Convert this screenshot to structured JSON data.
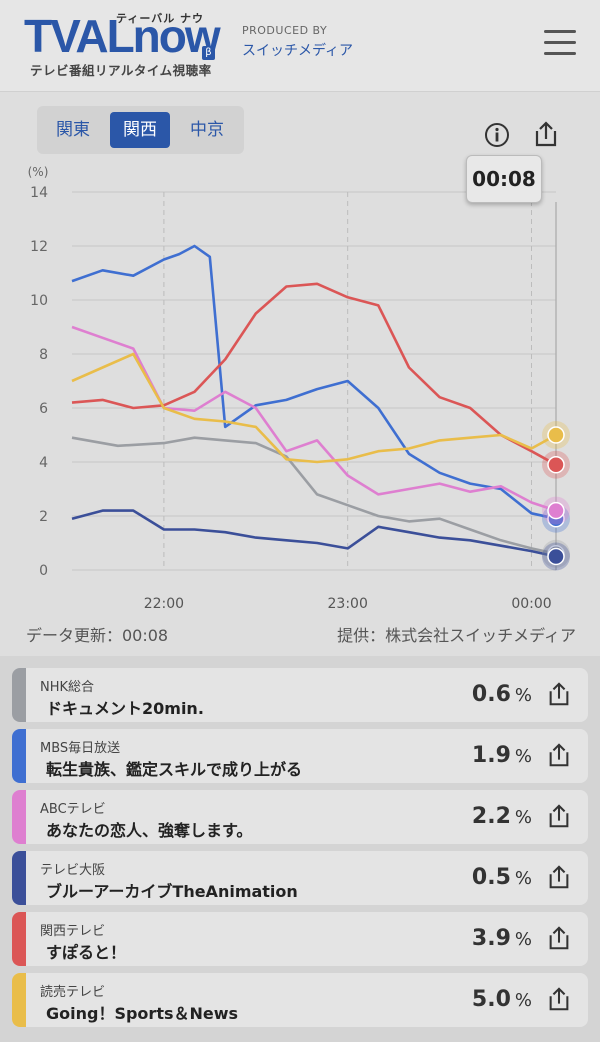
{
  "header": {
    "logo_text": "TVALnow",
    "logo_ruby": "ティーバル ナウ",
    "logo_beta": "β",
    "logo_sub": "テレビ番組リアルタイム視聴率",
    "produced_by": "PRODUCED BY",
    "producer": "スイッチメディア"
  },
  "regions": [
    {
      "label": "関東",
      "active": false
    },
    {
      "label": "関西",
      "active": true
    },
    {
      "label": "中京",
      "active": false
    }
  ],
  "current_time": "00:08",
  "footer": {
    "updated": "データ更新：00:08",
    "provider": "提供：株式会社スイッチメディア"
  },
  "chart_data": {
    "type": "line",
    "ylabel": "(%)",
    "ylim": [
      0,
      14
    ],
    "yticks": [
      0,
      2,
      4,
      6,
      8,
      10,
      12,
      14
    ],
    "x_tick_labels": [
      "22:00",
      "23:00",
      "00:00"
    ],
    "x_time_range": [
      "21:30",
      "00:08"
    ],
    "series": [
      {
        "name": "NHK総合",
        "color": "#9b9ea3",
        "x": [
          "21:30",
          "21:45",
          "22:00",
          "22:10",
          "22:20",
          "22:30",
          "22:40",
          "22:50",
          "23:00",
          "23:10",
          "23:20",
          "23:30",
          "23:40",
          "23:50",
          "00:00",
          "00:08"
        ],
        "values": [
          4.9,
          4.6,
          4.7,
          4.9,
          4.8,
          4.7,
          4.2,
          2.8,
          2.4,
          2.0,
          1.8,
          1.9,
          1.5,
          1.1,
          0.8,
          0.6
        ]
      },
      {
        "name": "MBS毎日放送",
        "color": "#3f6fd1",
        "x": [
          "21:30",
          "21:40",
          "21:50",
          "22:00",
          "22:05",
          "22:10",
          "22:15",
          "22:20",
          "22:30",
          "22:40",
          "22:50",
          "23:00",
          "23:10",
          "23:20",
          "23:30",
          "23:40",
          "23:50",
          "00:00",
          "00:08"
        ],
        "values": [
          10.7,
          11.1,
          10.9,
          11.5,
          11.7,
          12.0,
          11.6,
          5.3,
          6.1,
          6.3,
          6.7,
          7.0,
          6.0,
          4.3,
          3.6,
          3.2,
          3.0,
          2.1,
          1.9
        ]
      },
      {
        "name": "ABCテレビ",
        "color": "#de7fd0",
        "x": [
          "21:30",
          "21:40",
          "21:50",
          "22:00",
          "22:10",
          "22:20",
          "22:30",
          "22:40",
          "22:50",
          "23:00",
          "23:10",
          "23:20",
          "23:30",
          "23:40",
          "23:50",
          "00:00",
          "00:08"
        ],
        "values": [
          9.0,
          8.6,
          8.2,
          6.0,
          5.9,
          6.6,
          6.0,
          4.4,
          4.8,
          3.5,
          2.8,
          3.0,
          3.2,
          2.9,
          3.1,
          2.5,
          2.2
        ]
      },
      {
        "name": "テレビ大阪",
        "color": "#3b4f99",
        "x": [
          "21:30",
          "21:40",
          "21:50",
          "22:00",
          "22:10",
          "22:20",
          "22:30",
          "22:40",
          "22:50",
          "23:00",
          "23:10",
          "23:20",
          "23:30",
          "23:40",
          "23:50",
          "00:00",
          "00:08"
        ],
        "values": [
          1.9,
          2.2,
          2.2,
          1.5,
          1.5,
          1.4,
          1.2,
          1.1,
          1.0,
          0.8,
          1.6,
          1.4,
          1.2,
          1.1,
          0.9,
          0.7,
          0.5
        ]
      },
      {
        "name": "関西テレビ",
        "color": "#db5656",
        "x": [
          "21:30",
          "21:40",
          "21:50",
          "22:00",
          "22:10",
          "22:20",
          "22:30",
          "22:40",
          "22:50",
          "23:00",
          "23:10",
          "23:20",
          "23:30",
          "23:40",
          "23:50",
          "00:00",
          "00:08"
        ],
        "values": [
          6.2,
          6.3,
          6.0,
          6.1,
          6.6,
          7.8,
          9.5,
          10.5,
          10.6,
          10.1,
          9.8,
          7.5,
          6.4,
          6.0,
          5.0,
          4.4,
          3.9
        ]
      },
      {
        "name": "読売テレビ",
        "color": "#e9bd4a",
        "x": [
          "21:30",
          "21:40",
          "21:50",
          "22:00",
          "22:10",
          "22:20",
          "22:30",
          "22:40",
          "22:50",
          "23:00",
          "23:10",
          "23:20",
          "23:30",
          "23:40",
          "23:50",
          "00:00",
          "00:08"
        ],
        "values": [
          7.0,
          7.5,
          8.0,
          6.0,
          5.6,
          5.5,
          5.3,
          4.1,
          4.0,
          4.1,
          4.4,
          4.5,
          4.8,
          4.9,
          5.0,
          4.5,
          5.0
        ]
      }
    ]
  },
  "programs": [
    {
      "station": "NHK総合",
      "program": "ドキュメント20min.",
      "rating": "0.6",
      "unit": "%",
      "color": "#9b9ea3"
    },
    {
      "station": "MBS毎日放送",
      "program": "転生貴族、鑑定スキルで成り上がる",
      "rating": "1.9",
      "unit": "%",
      "color": "#3f6fd1"
    },
    {
      "station": "ABCテレビ",
      "program": "あなたの恋人、強奪します。",
      "rating": "2.2",
      "unit": "%",
      "color": "#de7fd0"
    },
    {
      "station": "テレビ大阪",
      "program": "ブルーアーカイブTheAnimation",
      "rating": "0.5",
      "unit": "%",
      "color": "#3b4f99"
    },
    {
      "station": "関西テレビ",
      "program": "すぽると！",
      "rating": "3.9",
      "unit": "%",
      "color": "#db5656"
    },
    {
      "station": "読売テレビ",
      "program": "Going！Sports＆News",
      "rating": "5.0",
      "unit": "%",
      "color": "#e9bd4a"
    }
  ]
}
